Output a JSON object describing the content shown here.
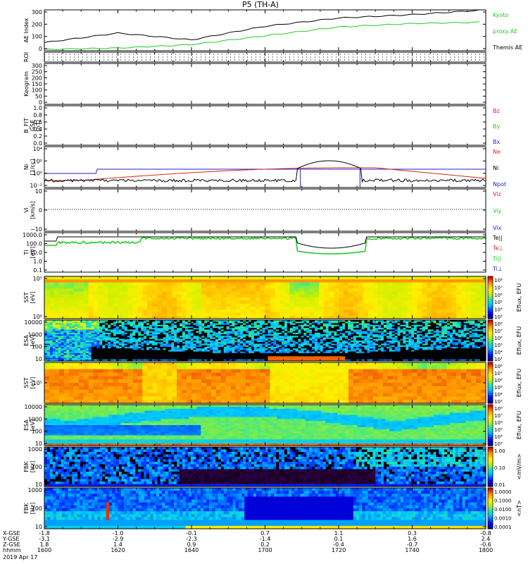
{
  "title": "P5 (TH-A)",
  "colors": {
    "red": "#d62222",
    "green": "#22cc22",
    "blue": "#2222cc",
    "black": "#000000"
  },
  "panels": [
    {
      "id": "ae",
      "ylabel": "AE Index",
      "yticks": [
        "300",
        "200",
        "100",
        "0"
      ],
      "legend": [
        {
          "text": "Kyoto",
          "color": "green"
        },
        {
          "text": "proxy AE",
          "color": "green"
        },
        {
          "text": "Themis AE",
          "color": "black"
        }
      ]
    },
    {
      "id": "roi",
      "ylabel": "ROI",
      "yticks": [],
      "legend": []
    },
    {
      "id": "keogram",
      "ylabel": "Keogram",
      "yticks": [
        "300",
        "250",
        "200",
        "150",
        "100",
        "50",
        "0"
      ],
      "legend": []
    },
    {
      "id": "bfit",
      "ylabel": "B_FIT",
      "ylabel2": "GSE",
      "ylabel3": "[nT]",
      "yticks": [
        "1.0",
        "0.8",
        "0.6",
        "0.4",
        "0.2",
        "0.0"
      ],
      "legend": [
        {
          "text": "Bz",
          "color": "red"
        },
        {
          "text": "By",
          "color": "green"
        },
        {
          "text": "Bx",
          "color": "blue"
        }
      ]
    },
    {
      "id": "ni",
      "ylabel": "Ni",
      "ylabel2": "[1/cc]",
      "yticks": [
        "10⁴",
        "10²",
        "10⁰",
        "10⁻²"
      ],
      "legend": [
        {
          "text": "Ne",
          "color": "red"
        },
        {
          "text": "Ni",
          "color": "black"
        },
        {
          "text": "Npot",
          "color": "blue"
        }
      ]
    },
    {
      "id": "vi",
      "ylabel": "Vi",
      "ylabel2": "[km/s]",
      "yticks": [
        "10",
        "0",
        "−10"
      ],
      "legend": [
        {
          "text": "Viz",
          "color": "red"
        },
        {
          "text": "Viy",
          "color": "green"
        },
        {
          "text": "Vix",
          "color": "blue"
        }
      ]
    },
    {
      "id": "ti",
      "ylabel": "Ti",
      "ylabel2": "[eV]",
      "yticks": [
        "1000.0",
        "100.0",
        "10.0",
        "1.0",
        "0.1"
      ],
      "legend": [
        {
          "text": "Te||",
          "color": "black"
        },
        {
          "text": "Te⊥",
          "color": "red"
        },
        {
          "text": "Ti||",
          "color": "green"
        },
        {
          "text": "Ti⊥",
          "color": "blue"
        }
      ]
    },
    {
      "id": "sst_i",
      "ylabel": "SST",
      "ylabel2": "[eV]",
      "yticks": [
        "10⁵",
        "10⁶"
      ],
      "colorbar": [
        "10⁸",
        "10⁷",
        "10⁶",
        "10⁵",
        "10⁴",
        "10³"
      ],
      "cblabel": "Eflux, EFU"
    },
    {
      "id": "esa_i",
      "ylabel": "ESA",
      "ylabel2": "[eV]",
      "yticks": [
        "10000",
        "1000",
        "100",
        "10"
      ],
      "colorbar": [
        "10⁸",
        "10⁷",
        "10⁶",
        "10⁵",
        "10⁴",
        "10³"
      ],
      "cblabel": "Eflux, EFU"
    },
    {
      "id": "sst_e",
      "ylabel": "SST",
      "ylabel2": "[eV]",
      "yticks": [
        "10⁵"
      ],
      "colorbar": [
        "10⁸",
        "10⁷",
        "10⁶",
        "10⁵",
        "10⁴",
        "10³"
      ],
      "cblabel": "Eflux, EFU"
    },
    {
      "id": "esa_e",
      "ylabel": "ESA",
      "ylabel2": "[eV]",
      "yticks": [
        "10000",
        "1000",
        "100",
        "10"
      ],
      "colorbar": [
        "10⁸",
        "10⁷",
        "10⁶",
        "10⁵",
        "10⁴",
        "10³"
      ],
      "cblabel": "Eflux, EFU"
    },
    {
      "id": "fbk_e",
      "ylabel": "FBK",
      "ylabel2": "[Hz]",
      "yticks": [
        "1000",
        "100",
        "10"
      ],
      "colorbar": [
        "1.00",
        "0.10",
        "0.01"
      ],
      "cblabel": "<mV/m>"
    },
    {
      "id": "fbk_b",
      "ylabel": "FBK",
      "ylabel2": "[Hz]",
      "yticks": [
        "1000",
        "100",
        "10"
      ],
      "colorbar": [
        "1.0000",
        "0.1000",
        "0.0100",
        "0.0010",
        "0.0001"
      ],
      "cblabel": "<nT>"
    }
  ],
  "xaxis": {
    "rows": [
      {
        "label": "X-GSE",
        "values": [
          "-1.8",
          "-1.0",
          "-0.1",
          "0.7",
          "1.1",
          "0.3",
          "-0.8"
        ]
      },
      {
        "label": "Y-GSE",
        "values": [
          "-3.1",
          "-2.9",
          "-2.3",
          "-1.4",
          "0.1",
          "1.6",
          "2.4"
        ]
      },
      {
        "label": "Z-GSE",
        "values": [
          "1.8",
          "1.4",
          "0.9",
          "0.2",
          "-0.4",
          "-0.7",
          "-0.6"
        ]
      },
      {
        "label": "hhmm",
        "values": [
          "1600",
          "1620",
          "1640",
          "1700",
          "1720",
          "1740",
          "1800"
        ]
      }
    ],
    "date": "2019 Apr 17"
  },
  "chart_data": {
    "type": "line",
    "title": "P5 (TH-A)",
    "x": [
      "1600",
      "1620",
      "1640",
      "1700",
      "1720",
      "1740",
      "1800"
    ],
    "series": [
      {
        "name": "Themis AE",
        "values": [
          60,
          130,
          80,
          180,
          240,
          265,
          300
        ]
      },
      {
        "name": "Kyoto proxy AE",
        "values": [
          10,
          20,
          45,
          110,
          175,
          200,
          210
        ]
      }
    ],
    "ylim": [
      0,
      300
    ]
  }
}
